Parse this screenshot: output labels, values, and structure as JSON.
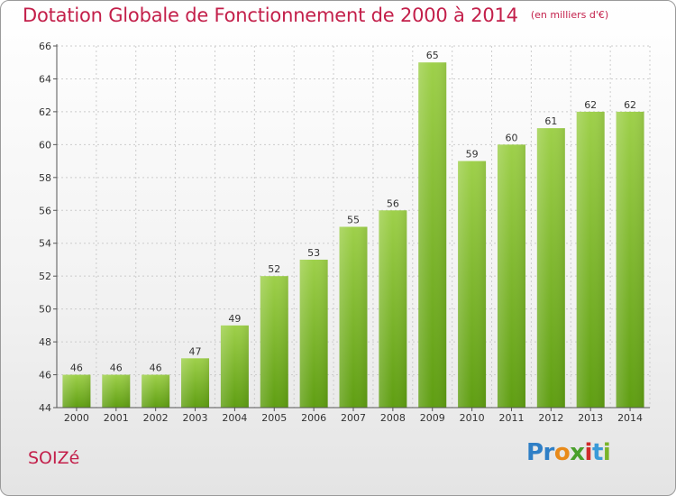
{
  "header": {
    "title": "Dotation Globale de Fonctionnement de 2000 à 2014",
    "unit": "(en milliers d'€)"
  },
  "footer": {
    "city": "SOIZé",
    "logo": [
      "Pr",
      "o",
      "x",
      "i",
      "t",
      "i"
    ]
  },
  "chart_data": {
    "type": "bar",
    "title": "Dotation Globale de Fonctionnement de 2000 à 2014",
    "subtitle": "(en milliers d'€)",
    "categories": [
      "2000",
      "2001",
      "2002",
      "2003",
      "2004",
      "2005",
      "2006",
      "2007",
      "2008",
      "2009",
      "2010",
      "2011",
      "2012",
      "2013",
      "2014"
    ],
    "values": [
      46,
      46,
      46,
      47,
      49,
      52,
      53,
      55,
      56,
      65,
      59,
      60,
      61,
      62,
      62
    ],
    "ylim": [
      44,
      66
    ],
    "yticks": [
      44,
      46,
      48,
      50,
      52,
      54,
      56,
      58,
      60,
      62,
      64,
      66
    ],
    "grid": true,
    "colors": {
      "bar_top": "#9ed04a",
      "bar_bottom": "#5f9e12",
      "grid": "#cccccc",
      "title": "#c31f4a"
    }
  }
}
